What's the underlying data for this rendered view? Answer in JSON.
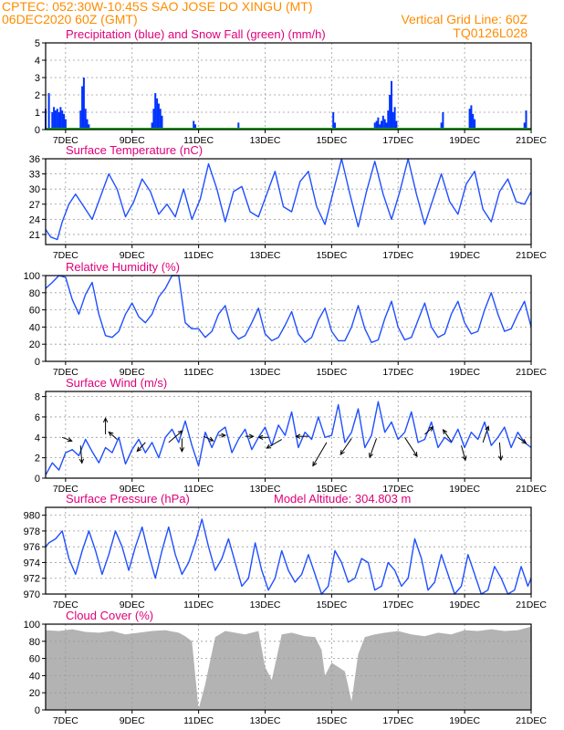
{
  "header": {
    "line1_left": "CPTEC:  052:30W-10:45S  SAO JOSE DO XINGU (MT)",
    "line2_left": "06DEC2020 60Z (GMT)",
    "line2_right": "Vertical Grid Line: 60Z",
    "line3_right": "TQ0126L028"
  },
  "colors": {
    "header": "#ff8c00",
    "panel_title": "#e0007a",
    "precip": "#0033ff",
    "snow": "#00b000",
    "line": "#1f4fff",
    "cloud": "#b3b3b3",
    "grid": "#9a9a9a"
  },
  "x_axis": {
    "tick_labels": [
      "7DEC",
      "9DEC",
      "11DEC",
      "13DEC",
      "15DEC",
      "17DEC",
      "19DEC",
      "21DEC"
    ],
    "tick_days": [
      7,
      9,
      11,
      13,
      15,
      17,
      19,
      21
    ],
    "range_days": [
      6.4,
      21.0
    ]
  },
  "chart_data": [
    {
      "id": "precip",
      "type": "bar",
      "title": "Precipitation (blue) and Snow Fall (green) (mm/h)",
      "ylim": [
        0,
        5
      ],
      "yticks": [
        0,
        1,
        2,
        3,
        4,
        5
      ],
      "grid": true,
      "series": [
        {
          "name": "Precipitation",
          "x": [
            6.4,
            6.5,
            6.6,
            6.65,
            6.7,
            6.75,
            6.8,
            6.85,
            6.9,
            6.95,
            7.0,
            7.45,
            7.5,
            7.55,
            7.6,
            7.65,
            7.7,
            9.6,
            9.65,
            9.7,
            9.75,
            9.8,
            9.85,
            9.9,
            10.85,
            10.9,
            12.2,
            15.05,
            15.1,
            16.3,
            16.35,
            16.4,
            16.45,
            16.5,
            16.55,
            16.6,
            16.65,
            16.7,
            16.75,
            16.8,
            16.85,
            16.9,
            16.95,
            18.3,
            18.35,
            19.15,
            19.2,
            19.25,
            19.3,
            20.8,
            20.85
          ],
          "values": [
            1.2,
            2.1,
            1.0,
            1.3,
            1.1,
            1.2,
            1.0,
            1.3,
            1.1,
            0.9,
            0.6,
            1.1,
            2.5,
            3.0,
            1.2,
            0.6,
            0.3,
            0.4,
            1.2,
            2.1,
            1.8,
            1.5,
            1.2,
            0.8,
            0.5,
            0.3,
            0.4,
            1.0,
            0.4,
            0.4,
            0.5,
            0.7,
            0.3,
            0.5,
            0.8,
            0.6,
            0.4,
            1.1,
            2.0,
            2.8,
            1.0,
            1.3,
            0.5,
            0.4,
            1.0,
            1.2,
            1.4,
            0.9,
            0.6,
            0.4,
            1.1
          ]
        },
        {
          "name": "Snow Fall",
          "x": [
            6.4,
            21.0
          ],
          "values": [
            0,
            0
          ]
        }
      ]
    },
    {
      "id": "temperature",
      "type": "line",
      "title": "Surface Temperature (nC)",
      "ylim": [
        19,
        36
      ],
      "yticks": [
        21,
        24,
        27,
        30,
        33,
        36
      ],
      "grid": true,
      "series": [
        {
          "name": "Surface Temperature",
          "x": [
            6.4,
            6.55,
            6.75,
            6.9,
            7.1,
            7.3,
            7.55,
            7.8,
            8.05,
            8.3,
            8.55,
            8.8,
            9.05,
            9.3,
            9.55,
            9.8,
            10.05,
            10.3,
            10.55,
            10.8,
            11.05,
            11.3,
            11.55,
            11.8,
            12.05,
            12.3,
            12.55,
            12.8,
            13.05,
            13.3,
            13.55,
            13.8,
            14.05,
            14.3,
            14.55,
            14.8,
            15.05,
            15.3,
            15.55,
            15.8,
            16.05,
            16.3,
            16.55,
            16.8,
            17.05,
            17.3,
            17.55,
            17.8,
            18.05,
            18.3,
            18.55,
            18.8,
            19.05,
            19.3,
            19.55,
            19.8,
            20.05,
            20.3,
            20.55,
            20.8,
            21.0
          ],
          "values": [
            22.0,
            20.5,
            20.0,
            23.5,
            27.0,
            29.0,
            26.5,
            24.0,
            28.5,
            33.0,
            30.0,
            24.5,
            27.5,
            32.0,
            29.5,
            25.0,
            27.0,
            24.5,
            30.0,
            24.0,
            28.0,
            35.0,
            30.0,
            23.5,
            29.5,
            30.5,
            25.5,
            24.5,
            29.0,
            33.5,
            26.5,
            25.5,
            31.5,
            33.5,
            26.5,
            23.0,
            29.5,
            36.0,
            29.0,
            22.5,
            29.5,
            35.5,
            29.0,
            24.0,
            29.5,
            36.0,
            29.0,
            23.0,
            28.0,
            33.0,
            27.5,
            25.0,
            31.0,
            33.5,
            26.0,
            23.5,
            29.5,
            32.0,
            27.5,
            27.0,
            29.5
          ]
        }
      ]
    },
    {
      "id": "humidity",
      "type": "line",
      "title": "Relative Humidity (%)",
      "ylim": [
        0,
        100
      ],
      "yticks": [
        0,
        20,
        40,
        60,
        80,
        100
      ],
      "grid": true,
      "series": [
        {
          "name": "Relative Humidity",
          "x": [
            6.4,
            6.6,
            6.8,
            7.0,
            7.2,
            7.4,
            7.6,
            7.8,
            8.0,
            8.2,
            8.4,
            8.6,
            8.8,
            9.0,
            9.2,
            9.4,
            9.6,
            9.8,
            10.0,
            10.2,
            10.4,
            10.6,
            10.8,
            11.0,
            11.2,
            11.4,
            11.6,
            11.8,
            12.0,
            12.2,
            12.4,
            12.6,
            12.8,
            13.0,
            13.2,
            13.4,
            13.6,
            13.8,
            14.0,
            14.2,
            14.4,
            14.6,
            14.8,
            15.0,
            15.2,
            15.4,
            15.6,
            15.8,
            16.0,
            16.2,
            16.4,
            16.6,
            16.8,
            17.0,
            17.2,
            17.4,
            17.6,
            17.8,
            18.0,
            18.2,
            18.4,
            18.6,
            18.8,
            19.0,
            19.2,
            19.4,
            19.6,
            19.8,
            20.0,
            20.2,
            20.4,
            20.6,
            20.8,
            21.0
          ],
          "values": [
            85,
            92,
            100,
            98,
            72,
            55,
            78,
            92,
            55,
            30,
            28,
            35,
            55,
            68,
            52,
            45,
            55,
            75,
            85,
            100,
            100,
            45,
            38,
            38,
            28,
            35,
            55,
            65,
            35,
            26,
            30,
            45,
            62,
            32,
            24,
            28,
            42,
            58,
            32,
            22,
            28,
            48,
            62,
            35,
            24,
            24,
            40,
            65,
            38,
            22,
            25,
            50,
            70,
            40,
            25,
            28,
            48,
            68,
            40,
            28,
            32,
            55,
            70,
            45,
            32,
            35,
            60,
            80,
            55,
            35,
            38,
            55,
            70,
            40
          ]
        }
      ]
    },
    {
      "id": "wind",
      "type": "line",
      "title": "Surface Wind (m/s)",
      "ylim": [
        0,
        8.5
      ],
      "yticks": [
        0,
        2,
        4,
        6,
        8
      ],
      "grid": true,
      "series": [
        {
          "name": "Surface Wind",
          "x": [
            6.4,
            6.6,
            6.8,
            7.0,
            7.2,
            7.4,
            7.6,
            7.8,
            8.0,
            8.2,
            8.4,
            8.6,
            8.8,
            9.0,
            9.2,
            9.4,
            9.6,
            9.8,
            10.0,
            10.2,
            10.4,
            10.6,
            10.8,
            11.0,
            11.2,
            11.4,
            11.6,
            11.8,
            12.0,
            12.2,
            12.4,
            12.6,
            12.8,
            13.0,
            13.2,
            13.4,
            13.6,
            13.8,
            14.0,
            14.2,
            14.4,
            14.6,
            14.8,
            15.0,
            15.2,
            15.4,
            15.6,
            15.8,
            16.0,
            16.2,
            16.4,
            16.6,
            16.8,
            17.0,
            17.2,
            17.4,
            17.6,
            17.8,
            18.0,
            18.2,
            18.4,
            18.6,
            18.8,
            19.0,
            19.2,
            19.4,
            19.6,
            19.8,
            20.0,
            20.2,
            20.4,
            20.6,
            20.8,
            21.0
          ],
          "values": [
            0.3,
            1.5,
            0.8,
            2.5,
            2.8,
            2.2,
            3.8,
            2.6,
            1.5,
            3.0,
            2.5,
            4.0,
            1.4,
            2.8,
            3.8,
            2.5,
            3.5,
            2.0,
            4.0,
            4.8,
            3.5,
            5.6,
            3.2,
            1.2,
            4.5,
            3.0,
            4.5,
            5.0,
            2.5,
            3.8,
            4.8,
            2.8,
            4.0,
            5.0,
            3.2,
            5.2,
            4.2,
            6.5,
            3.0,
            4.5,
            3.8,
            6.0,
            4.0,
            4.2,
            7.2,
            3.5,
            4.5,
            6.8,
            3.0,
            4.2,
            7.5,
            4.5,
            5.5,
            3.8,
            4.5,
            6.5,
            3.5,
            3.8,
            5.5,
            3.0,
            4.0,
            3.5,
            4.8,
            3.0,
            4.5,
            3.8,
            5.5,
            3.2,
            4.0,
            5.0,
            3.0,
            4.5,
            3.5,
            3.0
          ]
        }
      ],
      "wind_arrows": [
        {
          "x": 6.9,
          "y": 4.0,
          "dx": 0.35,
          "dy": -0.25
        },
        {
          "x": 7.45,
          "y": 3.2,
          "dx": 0.05,
          "dy": -1.2
        },
        {
          "x": 8.2,
          "y": 4.3,
          "dx": 0.0,
          "dy": 1.1
        },
        {
          "x": 8.55,
          "y": 3.8,
          "dx": -0.3,
          "dy": 0.5
        },
        {
          "x": 9.4,
          "y": 3.5,
          "dx": -0.3,
          "dy": -0.6
        },
        {
          "x": 10.1,
          "y": 3.5,
          "dx": 0.5,
          "dy": 0.8
        },
        {
          "x": 10.5,
          "y": 3.9,
          "dx": 0.0,
          "dy": -0.9
        },
        {
          "x": 11.15,
          "y": 4.1,
          "dx": 0.35,
          "dy": -0.3
        },
        {
          "x": 11.6,
          "y": 4.2,
          "dx": 0.25,
          "dy": 0.0
        },
        {
          "x": 12.4,
          "y": 4.1,
          "dx": 0.3,
          "dy": 0.0
        },
        {
          "x": 13.1,
          "y": 4.0,
          "dx": -0.35,
          "dy": 0.0
        },
        {
          "x": 13.5,
          "y": 3.8,
          "dx": -0.55,
          "dy": -0.6
        },
        {
          "x": 14.3,
          "y": 4.1,
          "dx": -0.45,
          "dy": 0.0
        },
        {
          "x": 14.85,
          "y": 3.5,
          "dx": -0.5,
          "dy": -1.6
        },
        {
          "x": 15.6,
          "y": 3.9,
          "dx": -0.4,
          "dy": -1.1
        },
        {
          "x": 16.35,
          "y": 3.9,
          "dx": -0.25,
          "dy": -1.3
        },
        {
          "x": 17.2,
          "y": 4.0,
          "dx": 0.45,
          "dy": -1.3
        },
        {
          "x": 17.8,
          "y": 4.3,
          "dx": 0.3,
          "dy": 0.5
        },
        {
          "x": 18.6,
          "y": 3.6,
          "dx": -0.3,
          "dy": 0.8
        },
        {
          "x": 18.9,
          "y": 3.2,
          "dx": 0.15,
          "dy": -1.0
        },
        {
          "x": 19.55,
          "y": 3.5,
          "dx": 0.2,
          "dy": 1.1
        },
        {
          "x": 20.05,
          "y": 3.5,
          "dx": 0.05,
          "dy": -1.2
        },
        {
          "x": 20.6,
          "y": 4.0,
          "dx": 0.3,
          "dy": -0.4
        }
      ]
    },
    {
      "id": "pressure",
      "type": "line",
      "title": "Surface Pressure (hPa)",
      "annotation": "Model Altitude: 304.803 m",
      "ylim": [
        970,
        981
      ],
      "yticks": [
        970,
        972,
        974,
        976,
        978,
        980
      ],
      "grid": true,
      "series": [
        {
          "name": "Surface Pressure",
          "x": [
            6.4,
            6.5,
            6.7,
            6.9,
            7.1,
            7.3,
            7.5,
            7.7,
            7.9,
            8.1,
            8.3,
            8.5,
            8.7,
            8.9,
            9.1,
            9.3,
            9.5,
            9.7,
            9.9,
            10.1,
            10.3,
            10.5,
            10.7,
            10.9,
            11.1,
            11.3,
            11.5,
            11.7,
            11.9,
            12.1,
            12.3,
            12.5,
            12.7,
            12.9,
            13.1,
            13.3,
            13.5,
            13.7,
            13.9,
            14.1,
            14.3,
            14.5,
            14.7,
            14.9,
            15.1,
            15.3,
            15.5,
            15.7,
            15.9,
            16.1,
            16.3,
            16.5,
            16.7,
            16.9,
            17.1,
            17.3,
            17.5,
            17.7,
            17.9,
            18.1,
            18.3,
            18.5,
            18.7,
            18.9,
            19.1,
            19.3,
            19.5,
            19.7,
            19.9,
            20.1,
            20.3,
            20.5,
            20.7,
            20.9,
            21.0
          ],
          "values": [
            976.0,
            976.5,
            977.0,
            978.0,
            974.5,
            972.5,
            975.5,
            978.0,
            975.5,
            972.5,
            975.0,
            978.0,
            976.0,
            973.0,
            976.0,
            978.5,
            975.0,
            972.0,
            975.5,
            978.5,
            975.0,
            972.5,
            974.0,
            976.5,
            979.5,
            976.0,
            973.0,
            974.5,
            977.0,
            974.0,
            971.0,
            972.0,
            976.5,
            973.0,
            970.5,
            972.0,
            975.5,
            973.0,
            971.5,
            972.5,
            975.0,
            972.5,
            970.0,
            971.0,
            975.5,
            974.0,
            971.5,
            972.0,
            974.5,
            974.0,
            970.5,
            971.0,
            974.0,
            973.0,
            971.0,
            972.0,
            977.0,
            974.5,
            970.5,
            971.5,
            975.0,
            972.5,
            970.0,
            971.0,
            975.0,
            972.5,
            970.0,
            970.5,
            973.5,
            972.0,
            970.0,
            970.5,
            973.5,
            971.0,
            972.0
          ]
        }
      ]
    },
    {
      "id": "cloud",
      "type": "area",
      "title": "Cloud Cover (%)",
      "ylim": [
        0,
        100
      ],
      "yticks": [
        0,
        20,
        40,
        60,
        80,
        100
      ],
      "grid": true,
      "series": [
        {
          "name": "Cloud Cover",
          "x": [
            6.4,
            6.8,
            7.2,
            7.6,
            8.0,
            8.4,
            8.8,
            9.2,
            9.6,
            10.0,
            10.4,
            10.6,
            10.8,
            11.0,
            11.2,
            11.5,
            11.8,
            12.1,
            12.4,
            12.8,
            13.0,
            13.2,
            13.5,
            13.8,
            14.2,
            14.5,
            14.7,
            14.8,
            15.0,
            15.2,
            15.4,
            15.6,
            15.8,
            16.0,
            16.3,
            16.6,
            17.0,
            17.4,
            17.8,
            18.2,
            18.6,
            19.0,
            19.4,
            19.8,
            20.2,
            20.6,
            21.0
          ],
          "values": [
            93,
            92,
            94,
            91,
            90,
            92,
            88,
            90,
            92,
            93,
            90,
            86,
            80,
            1,
            30,
            85,
            92,
            90,
            88,
            92,
            50,
            35,
            88,
            90,
            86,
            85,
            70,
            40,
            55,
            50,
            45,
            10,
            65,
            85,
            88,
            90,
            92,
            88,
            86,
            90,
            88,
            93,
            92,
            94,
            92,
            93,
            97
          ]
        }
      ]
    }
  ]
}
